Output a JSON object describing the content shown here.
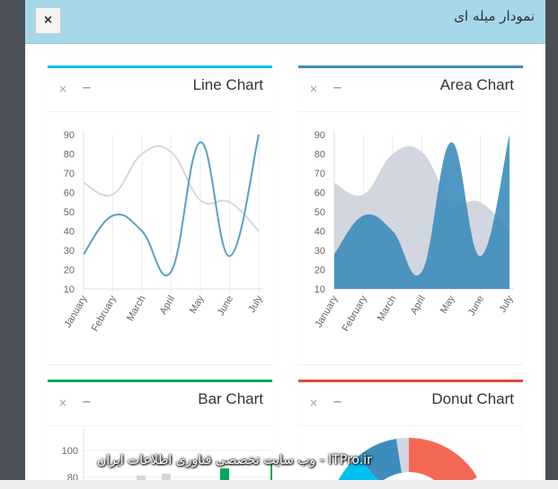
{
  "modal": {
    "title": "نمودار میله ای",
    "close_label": "×"
  },
  "panels": {
    "line": {
      "title": "Line Chart"
    },
    "area": {
      "title": "Area Chart"
    },
    "bar": {
      "title": "Bar Chart"
    },
    "donut": {
      "title": "Donut Chart"
    }
  },
  "tools": {
    "remove": "×",
    "collapse": "−"
  },
  "watermark": "ITPro.ir - وب سایت تخصصی فناوری اطلاعات ایران",
  "colors": {
    "header": "#a5d8e8",
    "line_border": "#00c0ef",
    "area_border": "#3c8dbc",
    "bar_border": "#00a65a",
    "donut_border": "#dd4b39",
    "series1": "#d2d6de",
    "series2": "#3c8dbc"
  },
  "chart_data": [
    {
      "type": "line",
      "title": "Line Chart",
      "categories": [
        "January",
        "February",
        "March",
        "April",
        "May",
        "June",
        "July"
      ],
      "series": [
        {
          "values": [
            65,
            59,
            80,
            81,
            56,
            55,
            40
          ],
          "color": "#d2d6de"
        },
        {
          "values": [
            28,
            48,
            40,
            19,
            86,
            27,
            90
          ],
          "color": "#3c8dbc"
        }
      ],
      "yticks": [
        10,
        20,
        30,
        40,
        50,
        60,
        70,
        80,
        90
      ],
      "ylim": [
        10,
        90
      ]
    },
    {
      "type": "area",
      "title": "Area Chart",
      "categories": [
        "January",
        "February",
        "March",
        "April",
        "May",
        "June",
        "July"
      ],
      "series": [
        {
          "values": [
            65,
            59,
            80,
            81,
            56,
            55,
            40
          ],
          "color": "#d2d6de"
        },
        {
          "values": [
            28,
            48,
            40,
            19,
            86,
            27,
            90
          ],
          "color": "#3c8dbc"
        }
      ],
      "yticks": [
        10,
        20,
        30,
        40,
        50,
        60,
        70,
        80,
        90
      ],
      "ylim": [
        10,
        90
      ]
    },
    {
      "type": "bar",
      "title": "Bar Chart",
      "yticks": [
        80,
        100
      ],
      "ylim": [
        0,
        100
      ]
    }
  ]
}
